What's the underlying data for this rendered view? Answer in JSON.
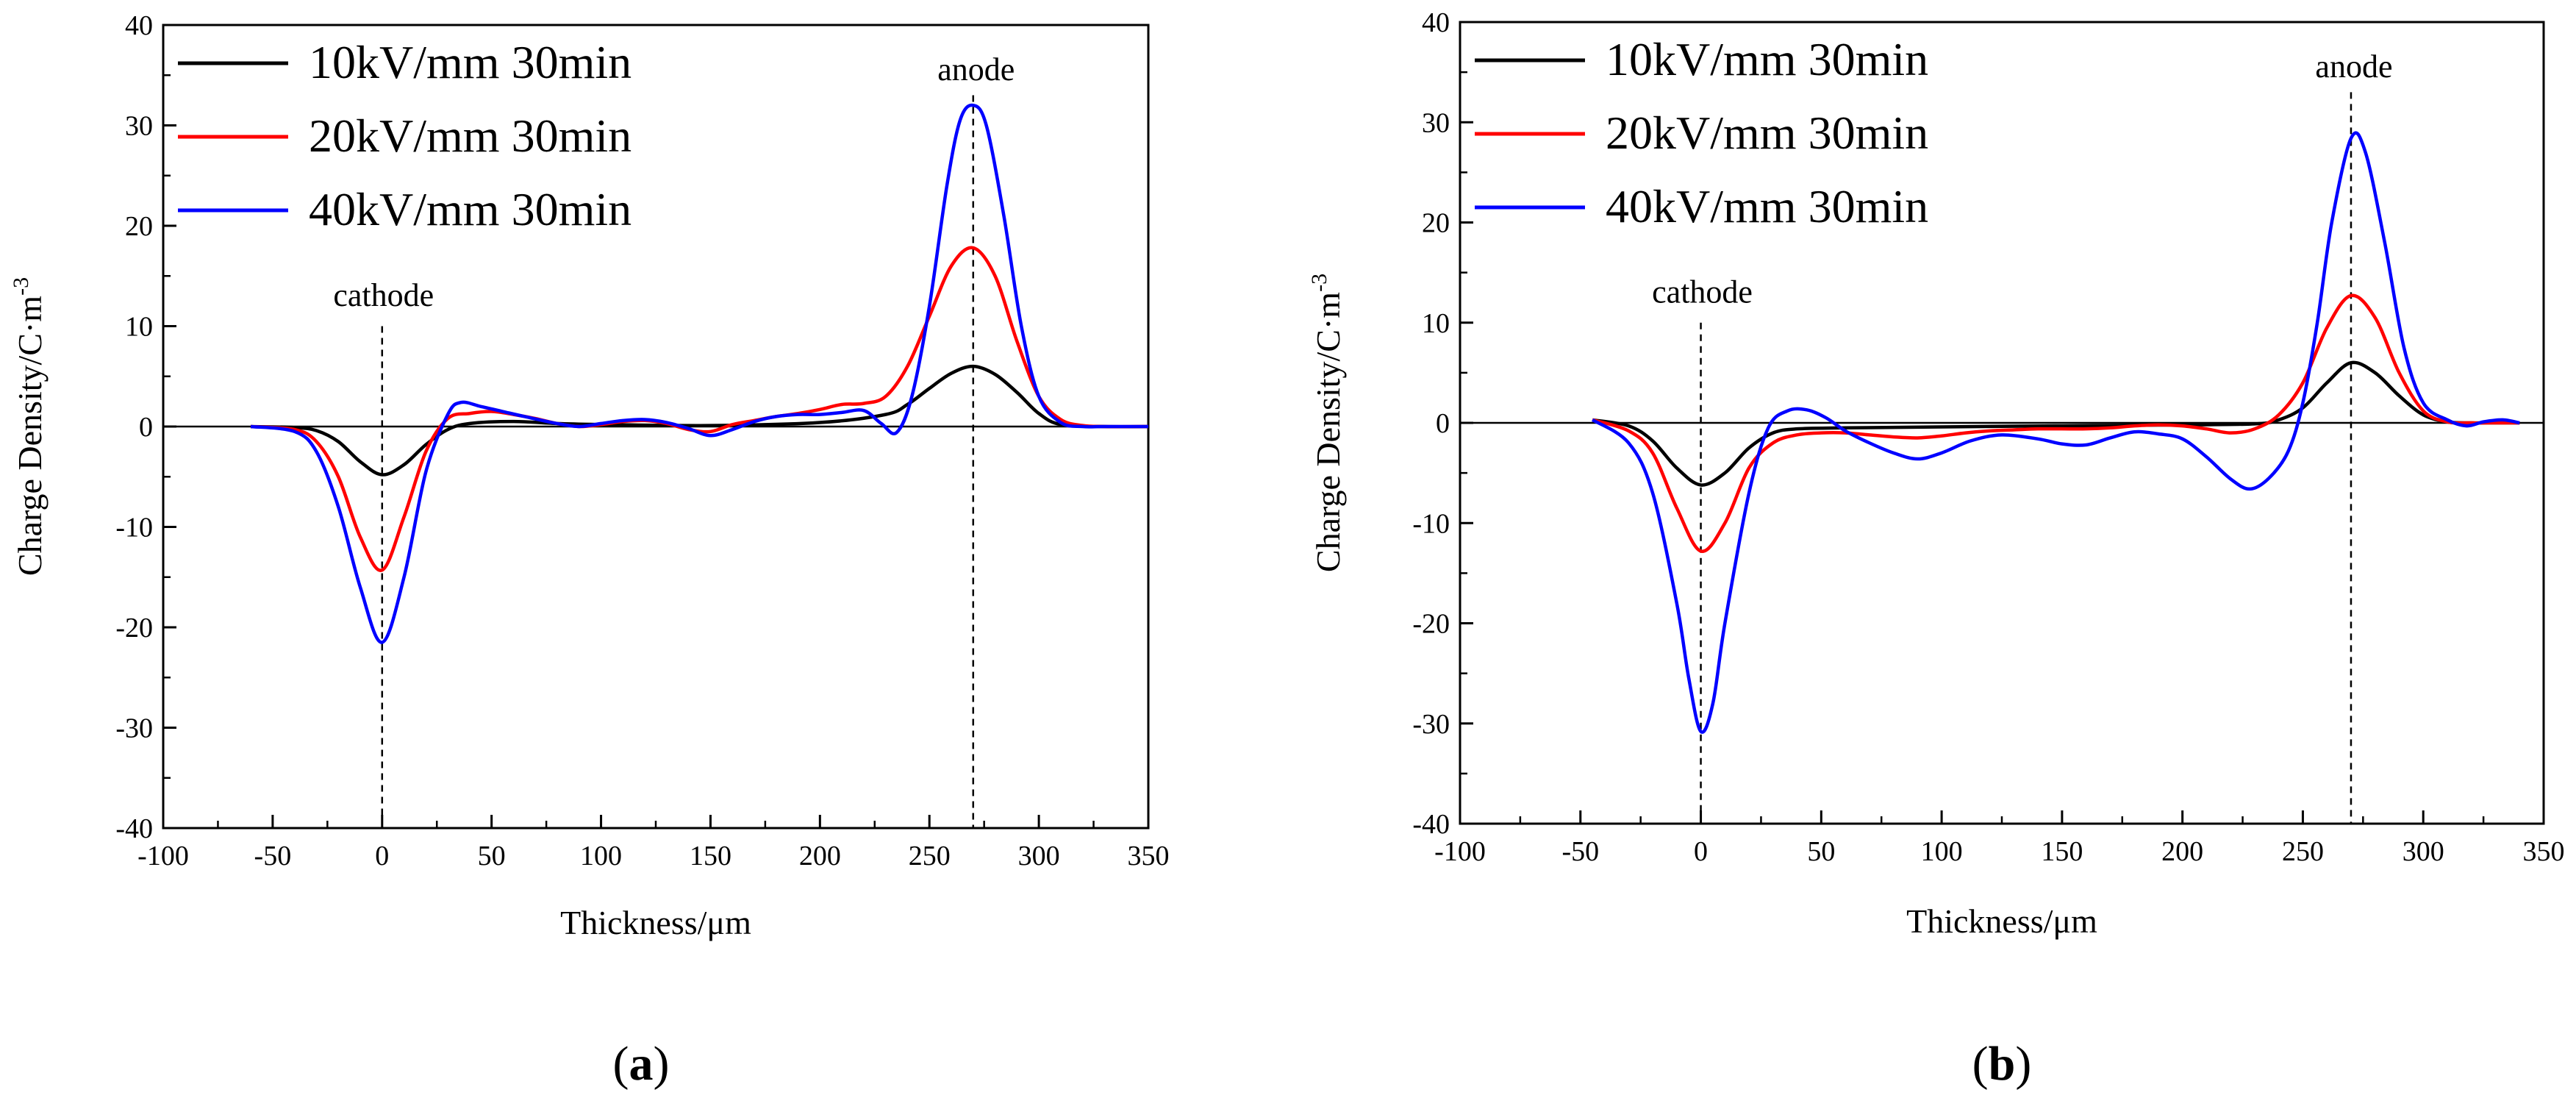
{
  "chart_data": [
    {
      "type": "line",
      "panel_label": "a",
      "xlabel": "Thickness/μm",
      "ylabel": "Charge Density/C·m",
      "ylabel_superscript": "-3",
      "xlim": [
        -100,
        350
      ],
      "ylim": [
        -40,
        40
      ],
      "xticks": [
        -100,
        -50,
        0,
        50,
        100,
        150,
        200,
        250,
        300,
        350
      ],
      "yticks": [
        -40,
        -30,
        -20,
        -10,
        0,
        10,
        20,
        30,
        40
      ],
      "legend_position": "top-left",
      "grid": false,
      "annotations": [
        {
          "text": "cathode",
          "x": 0
        },
        {
          "text": "anode",
          "x": 270
        }
      ],
      "series": [
        {
          "name": "10kV/mm 30min",
          "color": "#000000",
          "x": [
            -60,
            -40,
            -30,
            -20,
            -10,
            0,
            10,
            20,
            30,
            40,
            60,
            80,
            100,
            150,
            200,
            230,
            240,
            250,
            260,
            270,
            280,
            290,
            300,
            310,
            330,
            350
          ],
          "y": [
            0,
            -0.1,
            -0.4,
            -1.5,
            -3.5,
            -4.8,
            -3.8,
            -1.8,
            -0.3,
            0.3,
            0.5,
            0.3,
            0.2,
            0.1,
            0.4,
            1.2,
            2.2,
            3.8,
            5.3,
            6.0,
            5.2,
            3.4,
            1.3,
            0.2,
            0,
            0
          ]
        },
        {
          "name": "20kV/mm 30min",
          "color": "#ff0000",
          "x": [
            -60,
            -40,
            -30,
            -20,
            -10,
            0,
            10,
            20,
            30,
            40,
            50,
            60,
            70,
            80,
            90,
            100,
            110,
            120,
            130,
            140,
            150,
            160,
            170,
            180,
            190,
            200,
            210,
            220,
            230,
            240,
            250,
            260,
            270,
            280,
            290,
            300,
            310,
            320,
            330,
            350
          ],
          "y": [
            0,
            -0.3,
            -1.5,
            -5,
            -11,
            -14.3,
            -9,
            -2.5,
            0.8,
            1.3,
            1.5,
            1.2,
            0.8,
            0.3,
            0,
            0.2,
            0.5,
            0.6,
            0.3,
            -0.3,
            -0.5,
            0.2,
            0.6,
            1.0,
            1.3,
            1.7,
            2.2,
            2.3,
            3.0,
            6.0,
            11.0,
            16.0,
            17.8,
            15.0,
            8.5,
            3.0,
            0.7,
            0.1,
            0,
            0
          ]
        },
        {
          "name": "40kV/mm 30min",
          "color": "#0000ff",
          "x": [
            -60,
            -40,
            -30,
            -20,
            -10,
            0,
            10,
            20,
            30,
            36,
            45,
            55,
            65,
            80,
            90,
            100,
            110,
            120,
            130,
            140,
            150,
            160,
            170,
            180,
            190,
            200,
            210,
            220,
            228,
            235,
            242,
            250,
            258,
            264,
            270,
            276,
            284,
            292,
            300,
            310,
            320,
            330,
            350
          ],
          "y": [
            0,
            -0.5,
            -2.5,
            -8,
            -16,
            -21.5,
            -15,
            -4.5,
            1.2,
            2.4,
            2.0,
            1.5,
            1.0,
            0.3,
            0,
            0.3,
            0.6,
            0.7,
            0.4,
            -0.2,
            -0.9,
            -0.3,
            0.5,
            1.0,
            1.2,
            1.2,
            1.4,
            1.6,
            0.3,
            -0.6,
            3.0,
            12.0,
            24.0,
            30.5,
            32.0,
            30.0,
            21.0,
            10.0,
            3.0,
            0.4,
            0,
            0,
            0
          ]
        }
      ]
    },
    {
      "type": "line",
      "panel_label": "b",
      "xlabel": "Thickness/μm",
      "ylabel": "Charge Density/C·m",
      "ylabel_superscript": "-3",
      "xlim": [
        -100,
        350
      ],
      "ylim": [
        -40,
        40
      ],
      "xticks": [
        -100,
        -50,
        0,
        50,
        100,
        150,
        200,
        250,
        300,
        350
      ],
      "yticks": [
        -40,
        -30,
        -20,
        -10,
        0,
        10,
        20,
        30,
        40
      ],
      "legend_position": "top-left",
      "grid": false,
      "annotations": [
        {
          "text": "cathode",
          "x": 0
        },
        {
          "text": "anode",
          "x": 270
        }
      ],
      "series": [
        {
          "name": "10kV/mm 30min",
          "color": "#000000",
          "x": [
            -45,
            -30,
            -20,
            -10,
            0,
            10,
            20,
            30,
            40,
            60,
            100,
            150,
            200,
            230,
            240,
            250,
            260,
            270,
            280,
            290,
            300,
            310,
            320,
            330,
            340
          ],
          "y": [
            0.3,
            -0.3,
            -1.8,
            -4.5,
            -6.2,
            -5,
            -2.5,
            -1.0,
            -0.6,
            -0.5,
            -0.4,
            -0.3,
            -0.2,
            -0.1,
            0.3,
            1.5,
            4.0,
            6.0,
            5.0,
            2.7,
            0.8,
            0.1,
            0,
            0,
            0
          ]
        },
        {
          "name": "20kV/mm 30min",
          "color": "#ff0000",
          "x": [
            -45,
            -30,
            -20,
            -10,
            0,
            10,
            20,
            30,
            40,
            50,
            60,
            70,
            80,
            90,
            100,
            110,
            120,
            130,
            140,
            150,
            160,
            170,
            180,
            190,
            200,
            210,
            220,
            230,
            240,
            250,
            260,
            270,
            280,
            290,
            300,
            310,
            320,
            330,
            340
          ],
          "y": [
            0.3,
            -0.8,
            -3,
            -8.5,
            -12.8,
            -10,
            -4.5,
            -2.0,
            -1.2,
            -1.0,
            -1.0,
            -1.2,
            -1.4,
            -1.5,
            -1.3,
            -1.0,
            -0.8,
            -0.7,
            -0.6,
            -0.6,
            -0.6,
            -0.5,
            -0.3,
            -0.2,
            -0.3,
            -0.6,
            -1.0,
            -0.6,
            0.8,
            4.0,
            9.5,
            12.7,
            10.5,
            5.0,
            1.2,
            0.1,
            0,
            0,
            0
          ]
        },
        {
          "name": "40kV/mm 30min",
          "color": "#0000ff",
          "x": [
            -45,
            -30,
            -20,
            -10,
            -5,
            0,
            5,
            10,
            20,
            28,
            36,
            44,
            52,
            60,
            70,
            80,
            90,
            100,
            112,
            125,
            140,
            150,
            160,
            170,
            180,
            190,
            200,
            210,
            220,
            228,
            236,
            244,
            250,
            256,
            262,
            270,
            276,
            284,
            292,
            300,
            310,
            318,
            325,
            333,
            340
          ],
          "y": [
            0.3,
            -2.0,
            -7.0,
            -18.0,
            -25.5,
            -30.8,
            -28.0,
            -20.0,
            -7.0,
            -0.5,
            1.2,
            1.3,
            0.5,
            -0.8,
            -2.0,
            -3.0,
            -3.6,
            -3.0,
            -1.8,
            -1.2,
            -1.6,
            -2.1,
            -2.2,
            -1.5,
            -0.9,
            -1.1,
            -1.6,
            -3.4,
            -5.6,
            -6.6,
            -5.5,
            -2.8,
            2.0,
            10.0,
            20.0,
            28.4,
            27.0,
            18.0,
            7.5,
            2.0,
            0.3,
            -0.3,
            0.1,
            0.3,
            0
          ]
        }
      ]
    }
  ]
}
